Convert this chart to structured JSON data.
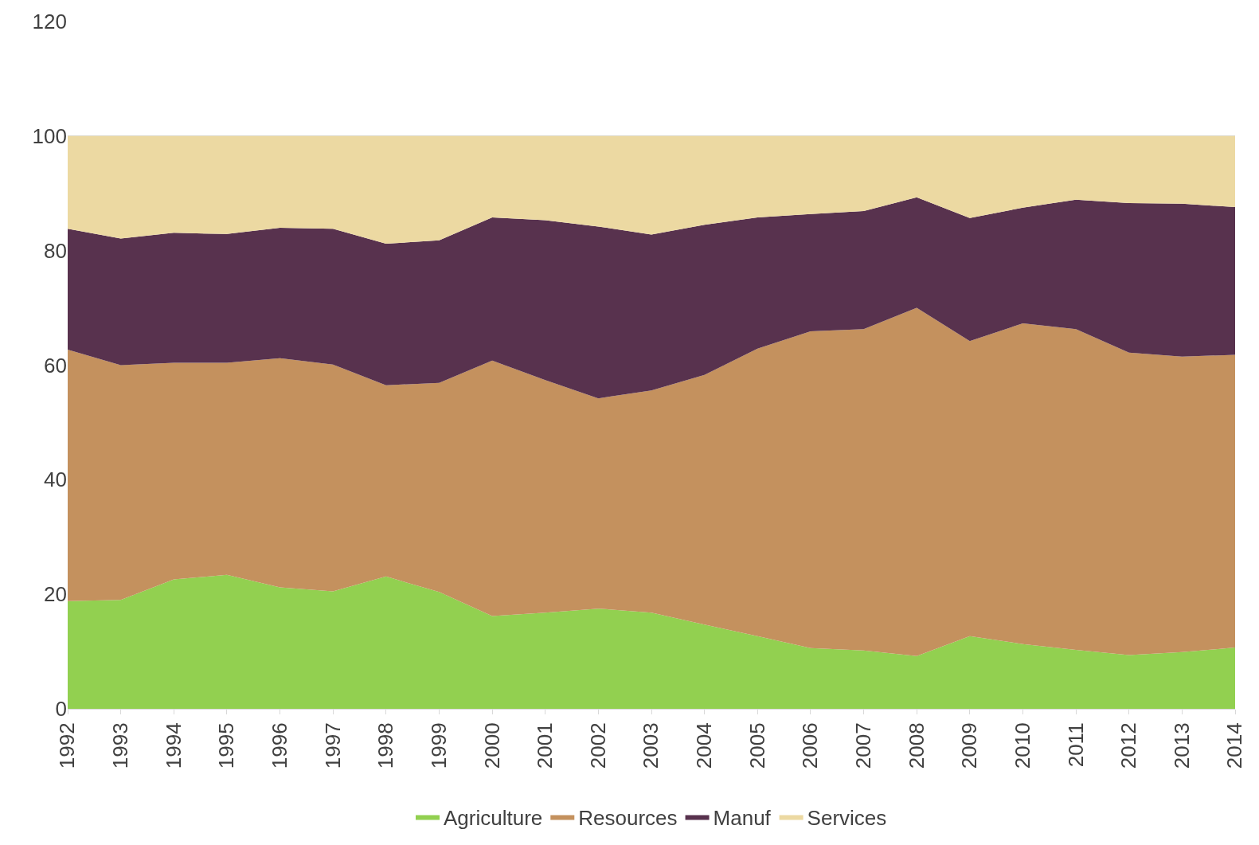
{
  "chart_data": {
    "type": "area",
    "stacked": true,
    "categories": [
      "1992",
      "1993",
      "1994",
      "1995",
      "1996",
      "1997",
      "1998",
      "1999",
      "2000",
      "2001",
      "2002",
      "2003",
      "2004",
      "2005",
      "2006",
      "2007",
      "2008",
      "2009",
      "2010",
      "2011",
      "2012",
      "2013",
      "2014"
    ],
    "series": [
      {
        "name": "Agriculture",
        "color": "#92d050",
        "values": [
          18.8,
          19.0,
          22.6,
          23.4,
          21.2,
          20.5,
          23.1,
          20.4,
          16.2,
          16.8,
          17.5,
          16.8,
          14.7,
          12.7,
          10.6,
          10.2,
          9.2,
          12.7,
          11.3,
          10.3,
          9.4,
          9.9,
          10.7
        ]
      },
      {
        "name": "Resources",
        "color": "#c4915e",
        "values": [
          43.9,
          41.0,
          37.8,
          37.0,
          40.0,
          39.6,
          33.4,
          36.5,
          44.6,
          40.6,
          36.7,
          38.8,
          43.6,
          50.2,
          55.3,
          56.1,
          60.8,
          51.5,
          56.0,
          56.0,
          52.8,
          51.6,
          51.1
        ]
      },
      {
        "name": "Manuf",
        "color": "#58324e",
        "values": [
          21.1,
          22.1,
          22.7,
          22.5,
          22.8,
          23.7,
          24.7,
          24.9,
          25.0,
          27.9,
          30.0,
          27.2,
          26.2,
          22.9,
          20.5,
          20.6,
          19.3,
          21.5,
          20.2,
          22.6,
          26.1,
          26.7,
          25.8
        ]
      },
      {
        "name": "Services",
        "color": "#ecd9a2",
        "values": [
          16.2,
          17.9,
          16.9,
          17.1,
          16.0,
          16.2,
          18.8,
          18.2,
          14.2,
          14.7,
          15.8,
          17.2,
          15.5,
          14.2,
          13.6,
          13.1,
          10.7,
          14.3,
          12.5,
          11.1,
          11.7,
          11.8,
          12.4
        ]
      }
    ],
    "ylim": [
      0,
      120
    ],
    "yticks": [
      0,
      20,
      40,
      60,
      80,
      100,
      120
    ],
    "grid": "y",
    "legend": "bottom"
  }
}
